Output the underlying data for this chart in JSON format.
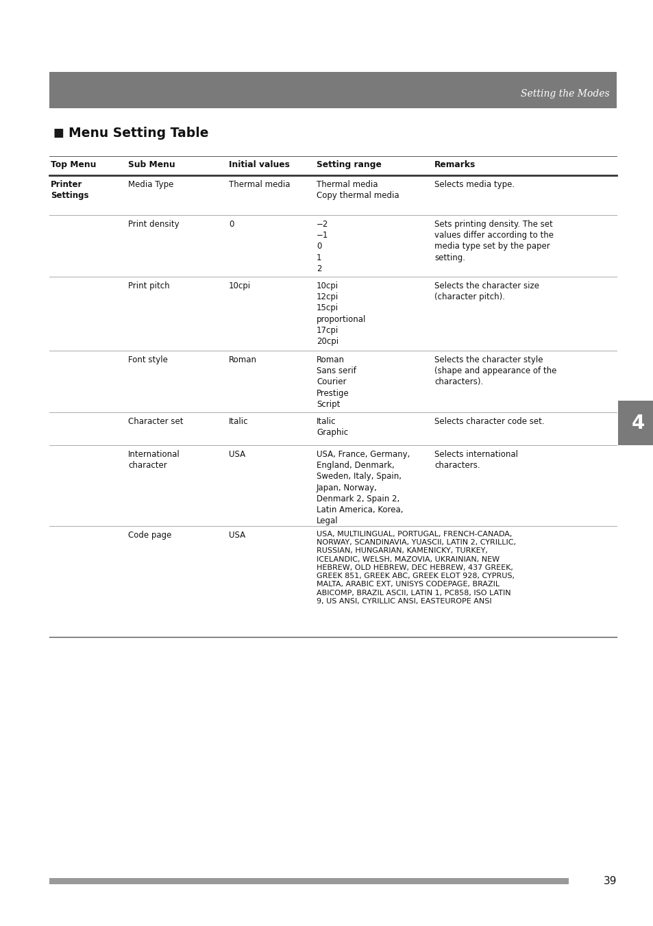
{
  "page_bg": "#ffffff",
  "header_bg": "#7a7a7a",
  "header_text": "Setting the Modes",
  "header_text_color": "#ffffff",
  "title": "Menu Setting Table",
  "col_headers": [
    "Top Menu",
    "Sub Menu",
    "Initial values",
    "Setting range",
    "Remarks"
  ],
  "body_fontsize": 8.5,
  "header_fontsize": 8.8,
  "title_fontsize": 13.5,
  "rows": [
    {
      "top_menu": "Printer\nSettings",
      "top_menu_bold": true,
      "sub_menu": "Media Type",
      "initial": "Thermal media",
      "setting_range": "Thermal media\nCopy thermal media",
      "remarks": "Selects media type.",
      "code_page_row": false
    },
    {
      "top_menu": "",
      "top_menu_bold": false,
      "sub_menu": "Print density",
      "initial": "0",
      "setting_range": "−2\n−1\n0\n1\n2",
      "remarks": "Sets printing density. The set\nvalues differ according to the\nmedia type set by the paper\nsetting.",
      "code_page_row": false
    },
    {
      "top_menu": "",
      "top_menu_bold": false,
      "sub_menu": "Print pitch",
      "initial": "10cpi",
      "setting_range": "10cpi\n12cpi\n15cpi\nproportional\n17cpi\n20cpi",
      "remarks": "Selects the character size\n(character pitch).",
      "code_page_row": false
    },
    {
      "top_menu": "",
      "top_menu_bold": false,
      "sub_menu": "Font style",
      "initial": "Roman",
      "setting_range": "Roman\nSans serif\nCourier\nPrestige\nScript",
      "remarks": "Selects the character style\n(shape and appearance of the\ncharacters).",
      "code_page_row": false
    },
    {
      "top_menu": "",
      "top_menu_bold": false,
      "sub_menu": "Character set",
      "initial": "Italic",
      "setting_range": "Italic\nGraphic",
      "remarks": "Selects character code set.",
      "code_page_row": false
    },
    {
      "top_menu": "",
      "top_menu_bold": false,
      "sub_menu": "International\ncharacter",
      "initial": "USA",
      "setting_range": "USA, France, Germany,\nEngland, Denmark,\nSweden, Italy, Spain,\nJapan, Norway,\nDenmark 2, Spain 2,\nLatin America, Korea,\nLegal",
      "remarks": "Selects international\ncharacters.",
      "code_page_row": false
    },
    {
      "top_menu": "",
      "top_menu_bold": false,
      "sub_menu": "Code page",
      "initial": "USA",
      "setting_range": "USA, MULTILINGUAL, PORTUGAL, FRENCH-CANADA,\nNORWAY, SCANDINAVIA, YUASCII, LATIN 2, CYRILLIC,\nRUSSIAN, HUNGARIAN, KAMENICKY, TURKEY,\nICELANDIC, WELSH, MAZOVIA, UKRAINIAN, NEW\nHEBREW, OLD HEBREW, DEC HEBREW, 437 GREEK,\nGREEK 851, GREEK ABC, GREEK ELOT 928, CYPRUS,\nMALTA, ARABIC EXT, UNISYS CODEPAGE, BRAZIL\nABICOMP, BRAZIL ASCII, LATIN 1, PC858, ISO LATIN\n9, US ANSI, CYRILLIC ANSI, EASTEUROPE ANSI",
      "remarks": "",
      "code_page_row": true
    }
  ],
  "footer_bar_color": "#999999",
  "footer_page_num": "39",
  "tab4_bg": "#7a7a7a",
  "tab4_text": "4",
  "tab4_text_color": "#ffffff"
}
